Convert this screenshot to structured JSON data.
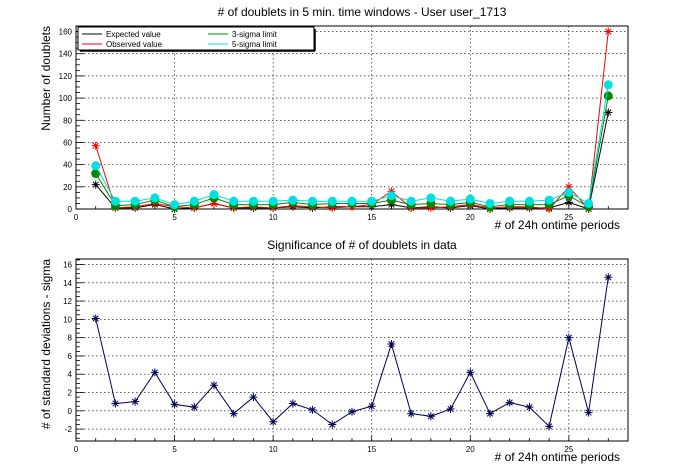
{
  "chart_data": [
    {
      "type": "line",
      "title": "# of doublets in 5 min. time windows - User user_1713",
      "xlabel": "# of 24h ontime periods",
      "ylabel": "Number of doublets",
      "xlim": [
        0,
        28
      ],
      "ylim": [
        0,
        165
      ],
      "xticks": [
        0,
        5,
        10,
        15,
        20,
        25
      ],
      "yticks": [
        0,
        20,
        40,
        60,
        80,
        100,
        120,
        140,
        160
      ],
      "grid": true,
      "legend_position": "top-left",
      "x": [
        1,
        2,
        3,
        4,
        5,
        6,
        7,
        8,
        9,
        10,
        11,
        12,
        13,
        14,
        15,
        16,
        17,
        18,
        19,
        20,
        21,
        22,
        23,
        24,
        25,
        26,
        27
      ],
      "series": [
        {
          "name": "Expected value",
          "color": "#000000",
          "marker": "star",
          "values": [
            22,
            1,
            1,
            4,
            0,
            1,
            5,
            1,
            1,
            1,
            2,
            1,
            2,
            2,
            2,
            4,
            1,
            2,
            1,
            3,
            0,
            1,
            1,
            1,
            6,
            0,
            87
          ]
        },
        {
          "name": "Observed value",
          "color": "#ff0000",
          "marker": "star",
          "values": [
            57,
            1,
            2,
            5,
            2,
            1,
            5,
            1,
            2,
            1,
            3,
            2,
            1,
            2,
            4,
            16,
            1,
            1,
            2,
            4,
            1,
            2,
            2,
            0,
            20,
            0,
            160
          ]
        },
        {
          "name": "3-sigma limit",
          "color": "#008800",
          "marker": "dot",
          "values": [
            32,
            3,
            4,
            8,
            2,
            4,
            10,
            4,
            4,
            4,
            6,
            4,
            5,
            5,
            5,
            8,
            4,
            5,
            4,
            6,
            2,
            4,
            4,
            4,
            12,
            2,
            102
          ]
        },
        {
          "name": "5-sigma limit",
          "color": "#00e0e0",
          "marker": "dot",
          "values": [
            39,
            7,
            7,
            10,
            4,
            7,
            13,
            7,
            7,
            7,
            8,
            7,
            7,
            7,
            7,
            12,
            7,
            10,
            7,
            9,
            5,
            7,
            7,
            8,
            15,
            5,
            112
          ]
        }
      ]
    },
    {
      "type": "line",
      "title": "Significance of # of doublets in data",
      "xlabel": "# of 24h ontime periods",
      "ylabel": "# of standard deviations - sigma",
      "xlim": [
        0,
        28
      ],
      "ylim": [
        -3.3,
        16.6
      ],
      "xticks": [
        0,
        5,
        10,
        15,
        20,
        25
      ],
      "yticks": [
        -2,
        0,
        2,
        4,
        6,
        8,
        10,
        12,
        14,
        16
      ],
      "grid": true,
      "x": [
        1,
        2,
        3,
        4,
        5,
        6,
        7,
        8,
        9,
        10,
        11,
        12,
        13,
        14,
        15,
        16,
        17,
        18,
        19,
        20,
        21,
        22,
        23,
        24,
        25,
        26,
        27
      ],
      "series": [
        {
          "color": "#000055",
          "marker": "star",
          "values": [
            10.1,
            0.8,
            1.0,
            4.2,
            0.7,
            0.4,
            2.8,
            -0.3,
            1.5,
            -1.2,
            0.8,
            0.1,
            -1.5,
            -0.1,
            0.5,
            7.3,
            -0.3,
            -0.6,
            0.2,
            4.2,
            -0.3,
            0.9,
            0.4,
            -1.7,
            8.0,
            -0.2,
            14.6
          ]
        }
      ]
    }
  ]
}
